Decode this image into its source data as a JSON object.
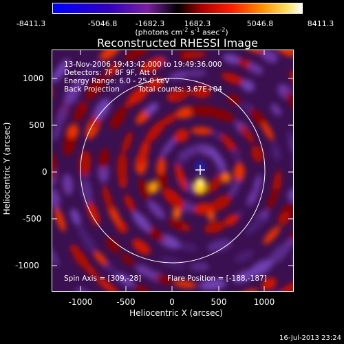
{
  "colorbar": {
    "ticks": [
      "-8411.3",
      "-5046.8",
      "-1682.3",
      "1682.3",
      "5046.8",
      "8411.3"
    ],
    "units_prefix": "(photons cm",
    "units_sup1": "-2",
    "units_mid1": " s",
    "units_sup2": "-1",
    "units_mid2": " asec",
    "units_sup3": "-2",
    "units_suffix": ")"
  },
  "plot": {
    "title": "Reconstructed RHESSI Image",
    "time_range": "13-Nov-2006 19:43:42.000 to 19:49:36.000",
    "detectors": "Detectors: 7F 8F 9F, Att 0",
    "energy_range": "Energy Range: 6.0 - 25.0 keV",
    "method": "Back Projection",
    "total_counts": "Total counts: 3.67E+04",
    "spin_axis": "Spin Axis = [309,-28]",
    "flare_position": "Flare Position = [-188,-187]",
    "xlabel": "Heliocentric X (arcsec)",
    "ylabel": "Heliocentric Y (arcsec)",
    "x_ticks": [
      "-1000",
      "-500",
      "0",
      "500",
      "1000"
    ],
    "y_ticks": [
      "1000",
      "500",
      "0",
      "-500",
      "-1000"
    ]
  },
  "timestamp": "16-Jul-2013 23:24"
}
